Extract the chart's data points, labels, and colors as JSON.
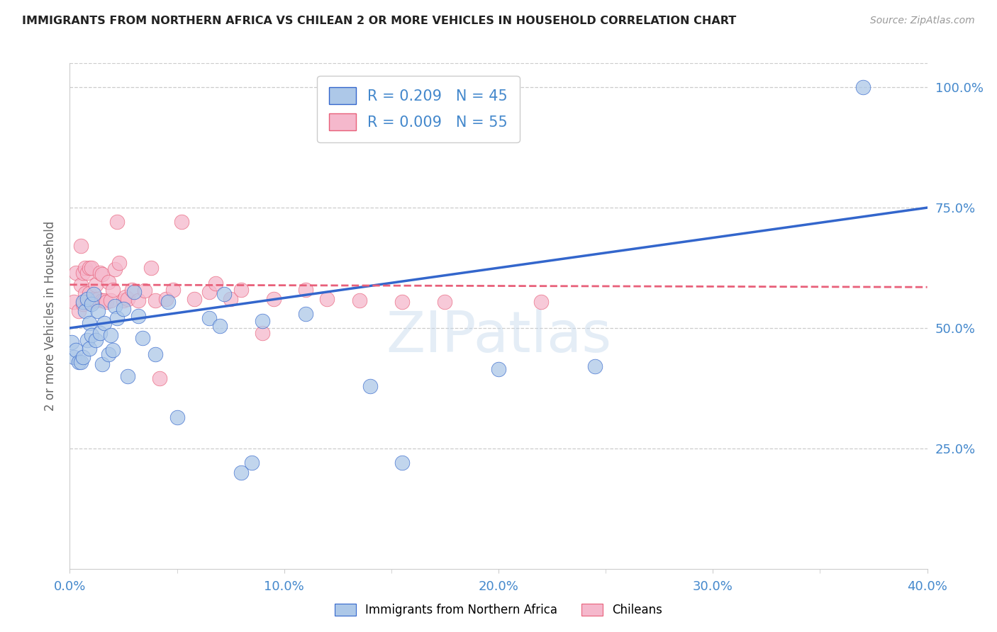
{
  "title": "IMMIGRANTS FROM NORTHERN AFRICA VS CHILEAN 2 OR MORE VEHICLES IN HOUSEHOLD CORRELATION CHART",
  "source": "Source: ZipAtlas.com",
  "ylabel": "2 or more Vehicles in Household",
  "xlim": [
    0.0,
    0.4
  ],
  "ylim": [
    0.0,
    1.05
  ],
  "xtick_labels": [
    "0.0%",
    "",
    "10.0%",
    "",
    "20.0%",
    "",
    "30.0%",
    "",
    "40.0%"
  ],
  "xtick_vals": [
    0.0,
    0.05,
    0.1,
    0.15,
    0.2,
    0.25,
    0.3,
    0.35,
    0.4
  ],
  "ytick_labels": [
    "25.0%",
    "50.0%",
    "75.0%",
    "100.0%"
  ],
  "ytick_vals": [
    0.25,
    0.5,
    0.75,
    1.0
  ],
  "blue_R": 0.209,
  "blue_N": 45,
  "pink_R": 0.009,
  "pink_N": 55,
  "blue_color": "#adc8e8",
  "pink_color": "#f5b8cc",
  "blue_line_color": "#3366cc",
  "pink_line_color": "#e8607a",
  "legend_label_blue": "Immigrants from Northern Africa",
  "legend_label_pink": "Chileans",
  "blue_x": [
    0.001,
    0.002,
    0.003,
    0.004,
    0.005,
    0.006,
    0.006,
    0.007,
    0.008,
    0.008,
    0.009,
    0.009,
    0.01,
    0.01,
    0.011,
    0.012,
    0.013,
    0.014,
    0.015,
    0.016,
    0.018,
    0.019,
    0.02,
    0.021,
    0.022,
    0.025,
    0.027,
    0.03,
    0.032,
    0.034,
    0.04,
    0.046,
    0.05,
    0.065,
    0.07,
    0.072,
    0.08,
    0.085,
    0.09,
    0.11,
    0.14,
    0.155,
    0.2,
    0.245,
    0.37
  ],
  "blue_y": [
    0.47,
    0.44,
    0.455,
    0.43,
    0.43,
    0.44,
    0.555,
    0.535,
    0.475,
    0.56,
    0.51,
    0.458,
    0.485,
    0.55,
    0.57,
    0.475,
    0.535,
    0.49,
    0.425,
    0.51,
    0.445,
    0.485,
    0.455,
    0.545,
    0.52,
    0.54,
    0.4,
    0.575,
    0.525,
    0.48,
    0.445,
    0.555,
    0.315,
    0.52,
    0.505,
    0.57,
    0.2,
    0.22,
    0.515,
    0.53,
    0.38,
    0.22,
    0.415,
    0.42,
    1.0
  ],
  "pink_x": [
    0.002,
    0.003,
    0.004,
    0.005,
    0.005,
    0.006,
    0.006,
    0.007,
    0.007,
    0.008,
    0.008,
    0.009,
    0.009,
    0.01,
    0.01,
    0.011,
    0.012,
    0.012,
    0.013,
    0.014,
    0.015,
    0.015,
    0.016,
    0.017,
    0.018,
    0.019,
    0.02,
    0.021,
    0.022,
    0.023,
    0.025,
    0.026,
    0.027,
    0.029,
    0.032,
    0.035,
    0.038,
    0.04,
    0.042,
    0.045,
    0.048,
    0.052,
    0.058,
    0.065,
    0.068,
    0.075,
    0.08,
    0.09,
    0.095,
    0.11,
    0.12,
    0.135,
    0.155,
    0.175,
    0.22
  ],
  "pink_y": [
    0.555,
    0.615,
    0.535,
    0.59,
    0.67,
    0.55,
    0.615,
    0.572,
    0.625,
    0.555,
    0.615,
    0.572,
    0.625,
    0.555,
    0.625,
    0.56,
    0.558,
    0.59,
    0.56,
    0.615,
    0.558,
    0.612,
    0.558,
    0.555,
    0.595,
    0.558,
    0.58,
    0.622,
    0.72,
    0.635,
    0.558,
    0.565,
    0.56,
    0.58,
    0.558,
    0.578,
    0.625,
    0.558,
    0.395,
    0.56,
    0.58,
    0.72,
    0.56,
    0.575,
    0.592,
    0.56,
    0.58,
    0.49,
    0.56,
    0.58,
    0.56,
    0.558,
    0.555,
    0.555,
    0.555
  ]
}
